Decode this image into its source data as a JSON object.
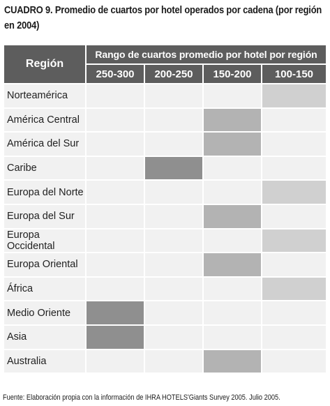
{
  "title": "CUADRO 9. Promedio de cuartos por hotel operados por cadena (por región en 2004)",
  "table": {
    "region_header": "Región",
    "range_header": "Rango de cuartos promedio por hotel por región",
    "columns": [
      "250-300",
      "200-250",
      "150-200",
      "100-150"
    ],
    "rows": [
      {
        "region": "Norteamérica",
        "range": "100-150"
      },
      {
        "region": "América Central",
        "range": "150-200"
      },
      {
        "region": "América del Sur",
        "range": "150-200"
      },
      {
        "region": "Caribe",
        "range": "200-250"
      },
      {
        "region": "Europa del Norte",
        "range": "100-150"
      },
      {
        "region": "Europa del Sur",
        "range": "150-200"
      },
      {
        "region": "Europa Occidental",
        "range": "100-150"
      },
      {
        "region": "Europa Oriental",
        "range": "150-200"
      },
      {
        "region": "África",
        "range": "100-150"
      },
      {
        "region": "Medio Oriente",
        "range": "250-300"
      },
      {
        "region": "Asia",
        "range": "250-300"
      },
      {
        "region": "Australia",
        "range": "150-200"
      }
    ],
    "colors": {
      "header": "#5d5d5d",
      "empty": "#f1f1f1",
      "100-150": "#d0d0d0",
      "150-200": "#b3b3b3",
      "200-250": "#8f8f8f",
      "250-300": "#8f8f8f"
    }
  },
  "source": "Fuente: Elaboración propia con la información de IHRA HOTELS'Giants Survey 2005. Julio 2005."
}
